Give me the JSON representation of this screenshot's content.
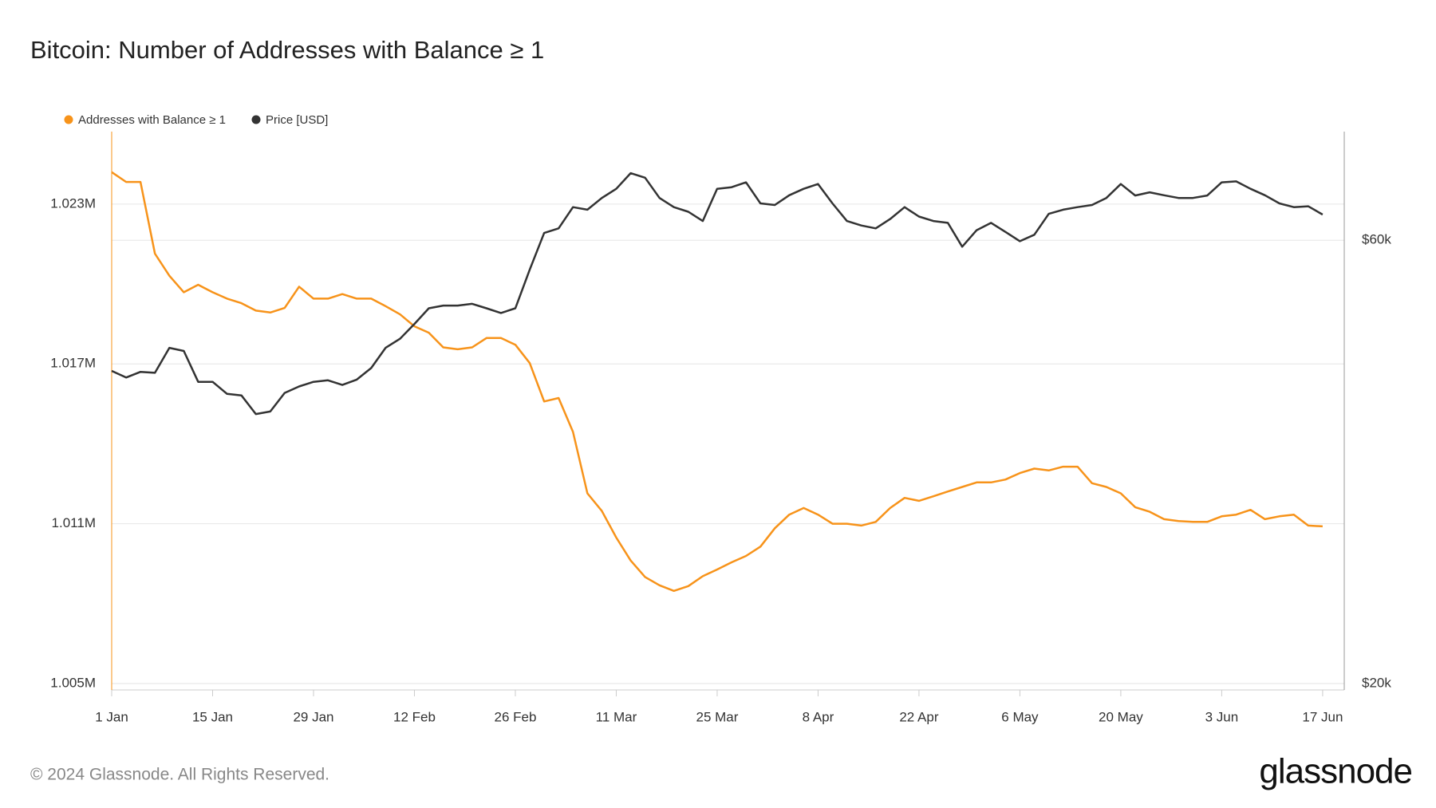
{
  "chart_data": {
    "type": "line",
    "title": "Bitcoin: Number of Addresses with Balance ≥ 1",
    "x": [
      0,
      2,
      4,
      6,
      8,
      10,
      12,
      14,
      16,
      18,
      20,
      22,
      24,
      26,
      28,
      30,
      32,
      34,
      36,
      38,
      40,
      42,
      44,
      46,
      48,
      50,
      52,
      54,
      56,
      58,
      60,
      62,
      64,
      66,
      68,
      70,
      72,
      74,
      76,
      78,
      80,
      82,
      84,
      86,
      88,
      90,
      92,
      94,
      96,
      98,
      100,
      102,
      104,
      106,
      108,
      110,
      112,
      114,
      116,
      118,
      120,
      122,
      124,
      126,
      128,
      130,
      132,
      134,
      136,
      138,
      140,
      142,
      144,
      146,
      148,
      150,
      152,
      154,
      156,
      158,
      160,
      162,
      164,
      166,
      168
    ],
    "xlim": [
      0,
      171
    ],
    "xticks": [
      {
        "value": 0,
        "label": "1 Jan"
      },
      {
        "value": 14,
        "label": "15 Jan"
      },
      {
        "value": 28,
        "label": "29 Jan"
      },
      {
        "value": 42,
        "label": "12 Feb"
      },
      {
        "value": 56,
        "label": "26 Feb"
      },
      {
        "value": 70,
        "label": "11 Mar"
      },
      {
        "value": 84,
        "label": "25 Mar"
      },
      {
        "value": 98,
        "label": "8 Apr"
      },
      {
        "value": 112,
        "label": "22 Apr"
      },
      {
        "value": 126,
        "label": "6 May"
      },
      {
        "value": 140,
        "label": "20 May"
      },
      {
        "value": 154,
        "label": "3 Jun"
      },
      {
        "value": 168,
        "label": "17 Jun"
      }
    ],
    "ylim": [
      1004760,
      1025720
    ],
    "yticks": [
      {
        "value": 1005000,
        "label": "1.005M"
      },
      {
        "value": 1011000,
        "label": "1.011M"
      },
      {
        "value": 1017000,
        "label": "1.017M"
      },
      {
        "value": 1023000,
        "label": "1.023M"
      }
    ],
    "y2lim": [
      19680,
      78550
    ],
    "y2ticks": [
      {
        "value": 20000,
        "label": "$20k"
      },
      {
        "value": 60000,
        "label": "$60k"
      }
    ],
    "y2scale": "log",
    "grid": true,
    "legend": "top-left",
    "series": [
      {
        "name": "Addresses with Balance ≥ 1",
        "color": "#f7931a",
        "values": [
          1024200,
          1023830,
          1023830,
          1021140,
          1020310,
          1019690,
          1019970,
          1019690,
          1019450,
          1019280,
          1019000,
          1018930,
          1019100,
          1019900,
          1019450,
          1019450,
          1019620,
          1019450,
          1019450,
          1019170,
          1018860,
          1018410,
          1018170,
          1017620,
          1017550,
          1017620,
          1017970,
          1017970,
          1017720,
          1017030,
          1015590,
          1015720,
          1014450,
          1012140,
          1011480,
          1010480,
          1009620,
          1009000,
          1008690,
          1008480,
          1008660,
          1009030,
          1009280,
          1009550,
          1009790,
          1010140,
          1010830,
          1011340,
          1011590,
          1011340,
          1011000,
          1011000,
          1010930,
          1011070,
          1011590,
          1011970,
          1011860,
          1012030,
          1012210,
          1012380,
          1012550,
          1012550,
          1012660,
          1012900,
          1013070,
          1013000,
          1013140,
          1013140,
          1012520,
          1012380,
          1012140,
          1011620,
          1011450,
          1011170,
          1011100,
          1011070,
          1011070,
          1011280,
          1011340,
          1011520,
          1011170,
          1011280,
          1011340,
          1010930,
          1010900
        ]
      },
      {
        "name": "Price [USD]",
        "color": "#333333",
        "axis": "y2",
        "values": [
          43400,
          42700,
          43300,
          43200,
          45960,
          45600,
          42240,
          42240,
          41000,
          40850,
          39000,
          39250,
          41100,
          41760,
          42240,
          42400,
          41920,
          42480,
          43710,
          45960,
          47000,
          48760,
          50690,
          51030,
          51030,
          51260,
          50690,
          50100,
          50690,
          55780,
          61100,
          61800,
          65130,
          64730,
          66630,
          68170,
          70860,
          70070,
          66630,
          65130,
          64390,
          62930,
          68170,
          68440,
          69270,
          65750,
          65480,
          67090,
          68170,
          68980,
          65750,
          62930,
          62240,
          61800,
          63250,
          65130,
          63630,
          62930,
          62650,
          59050,
          61520,
          62650,
          61250,
          59860,
          60830,
          64060,
          64730,
          65130,
          65480,
          66630,
          68980,
          67050,
          67570,
          67090,
          66630,
          66630,
          67050,
          69270,
          69430,
          68170,
          67090,
          65750,
          65130,
          65280,
          63950
        ]
      }
    ]
  },
  "footer": {
    "copyright": "© 2024 Glassnode. All Rights Reserved.",
    "logo": "glassnode"
  }
}
